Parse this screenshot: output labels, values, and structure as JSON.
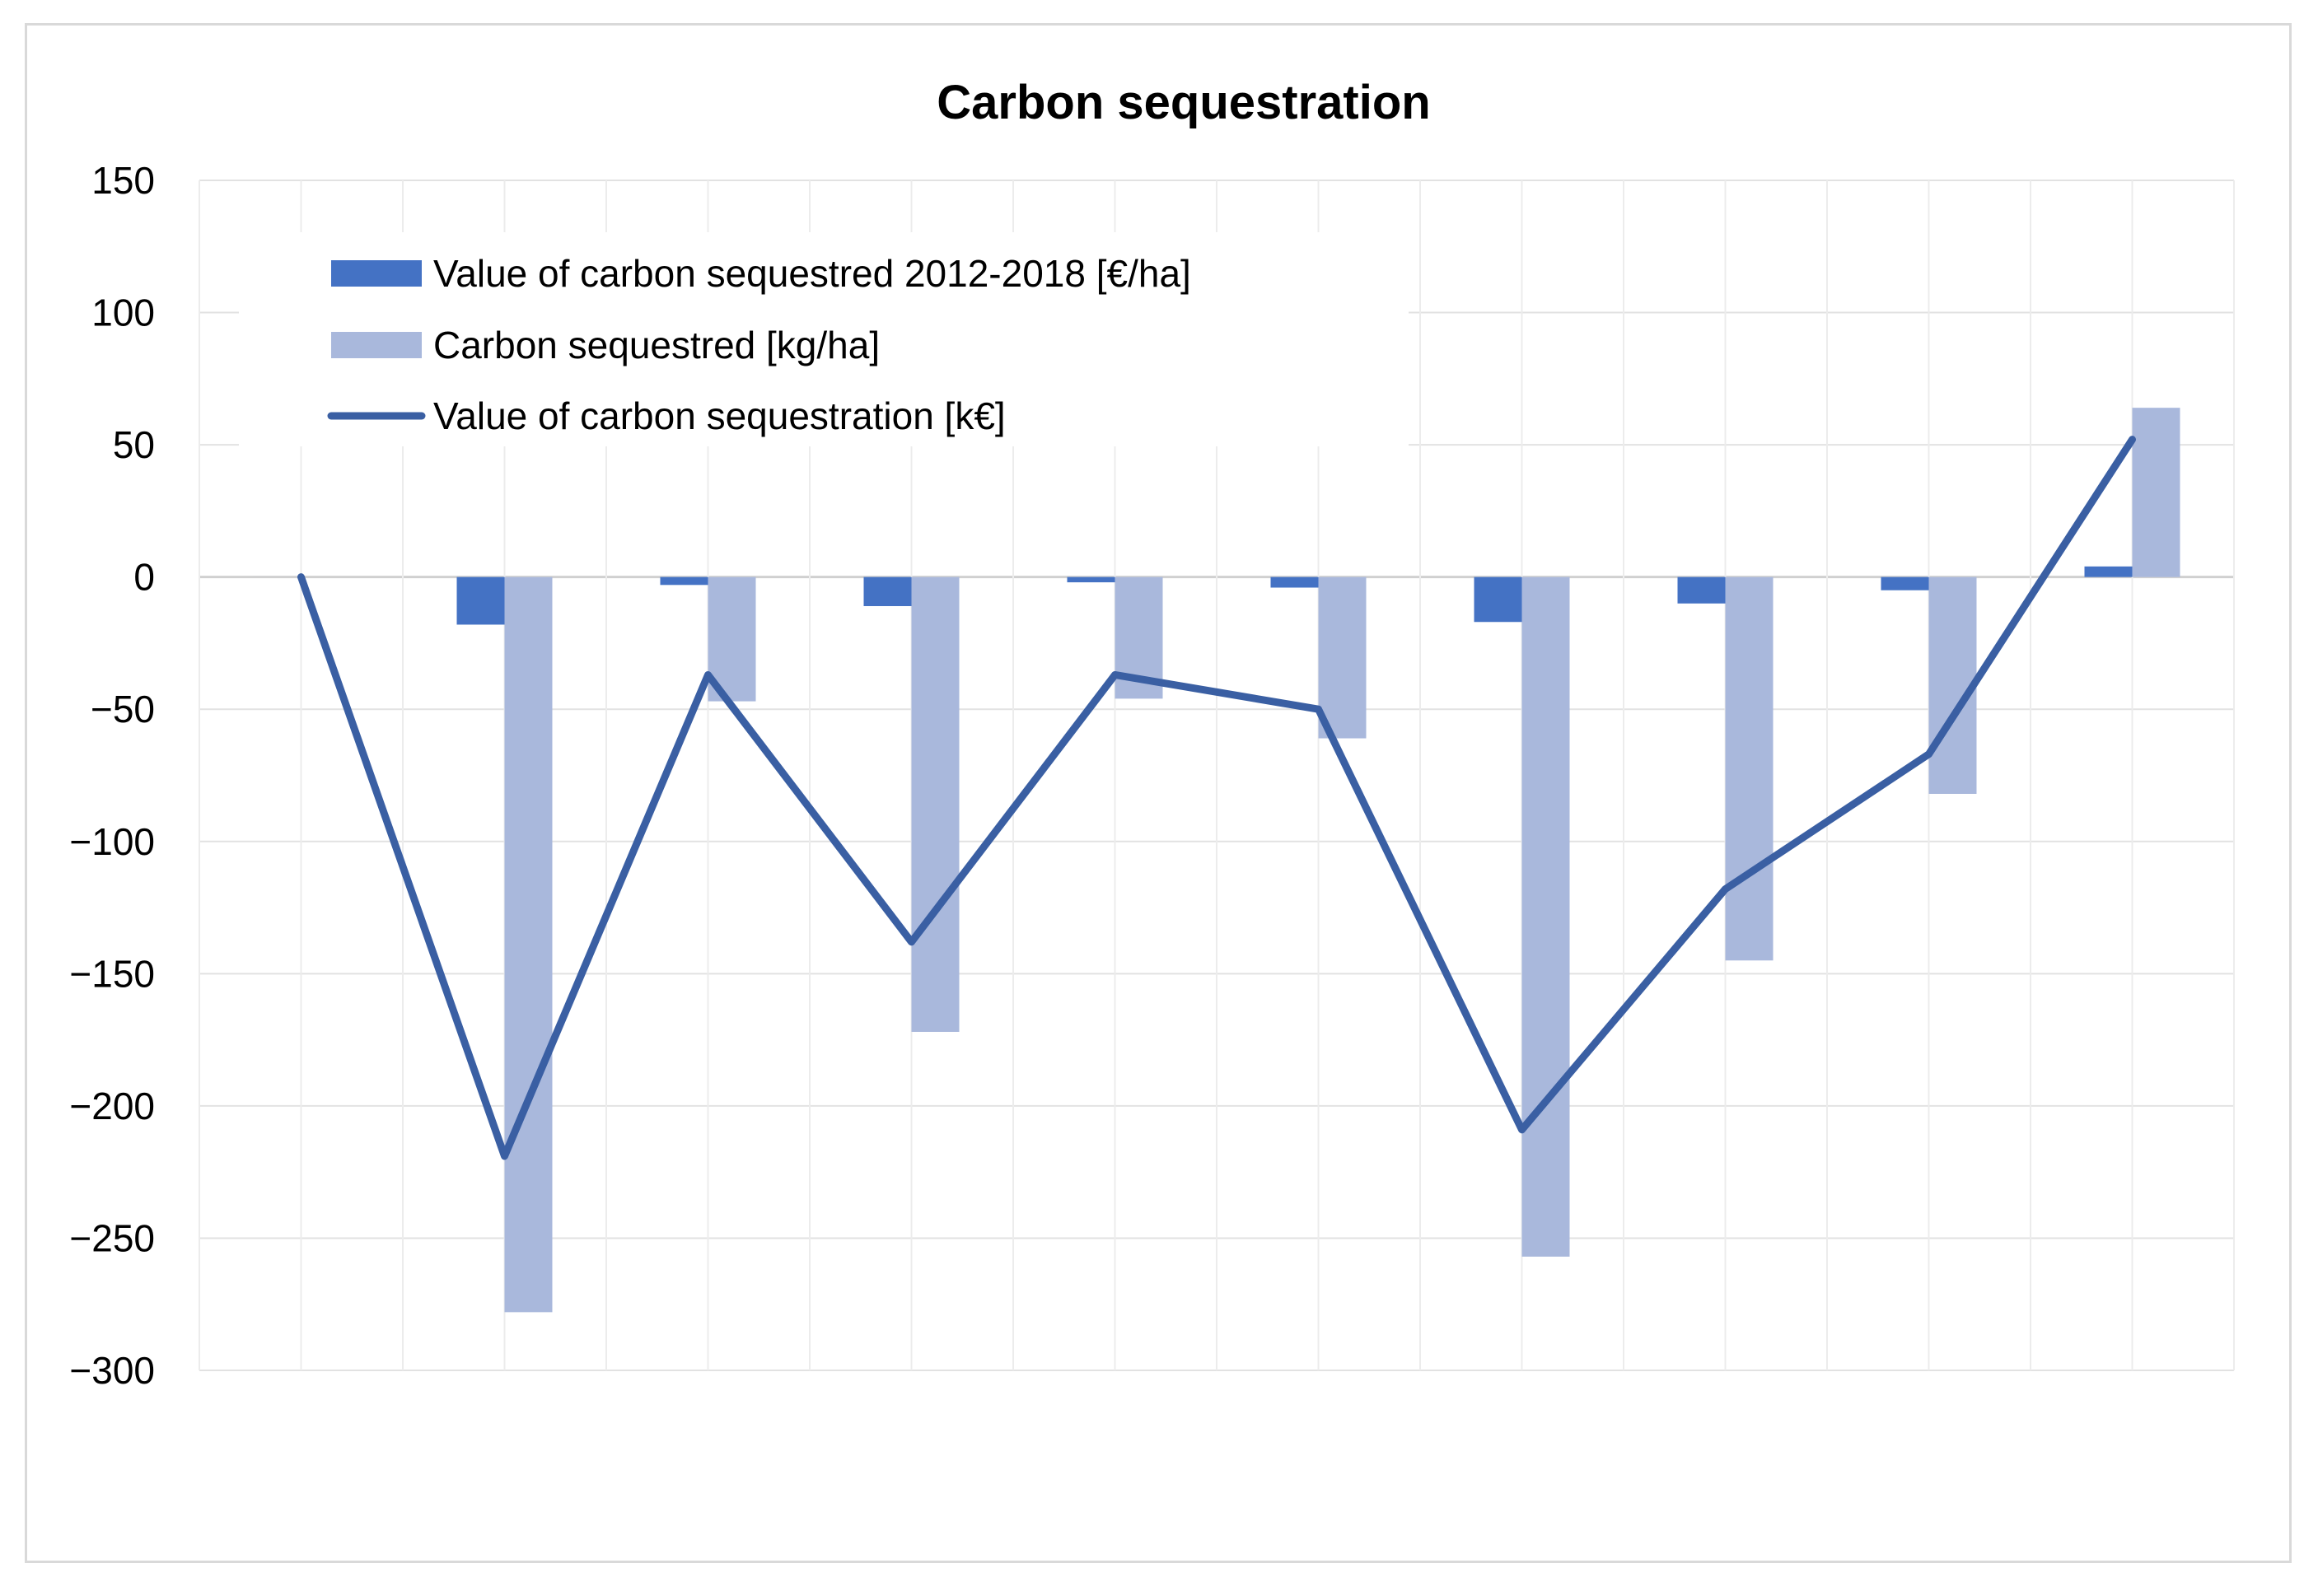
{
  "chart_data": {
    "type": "bar",
    "title": "Carbon sequestration",
    "xlabel": "",
    "ylabel": "",
    "ylim": [
      -300,
      150
    ],
    "yticks": [
      150,
      100,
      50,
      0,
      -50,
      -100,
      -150,
      -200,
      -250,
      -300
    ],
    "ytick_labels": [
      "150",
      "100",
      "50",
      "0",
      "−50",
      "−100",
      "−150",
      "−200",
      "−250",
      "−300"
    ],
    "category_count": 10,
    "grid": true,
    "legend_position": "top-left",
    "series": [
      {
        "name": "Value of carbon sequestred 2012-2018 [€/ha]",
        "kind": "bar",
        "color": "#4472c4",
        "values": [
          0,
          -18,
          -3,
          -11,
          -2,
          -4,
          -17,
          -10,
          -5,
          4
        ]
      },
      {
        "name": "Carbon sequestred [kg/ha]",
        "kind": "bar",
        "color": "#a9b8dc",
        "values": [
          0,
          -278,
          -47,
          -172,
          -46,
          -61,
          -257,
          -145,
          -82,
          64
        ]
      },
      {
        "name": "Value of carbon sequestration [k€]",
        "kind": "line",
        "color": "#3a5fa3",
        "values": [
          0,
          -219,
          -37,
          -138,
          -37,
          -50,
          -209,
          -118,
          -67,
          52
        ]
      }
    ]
  }
}
